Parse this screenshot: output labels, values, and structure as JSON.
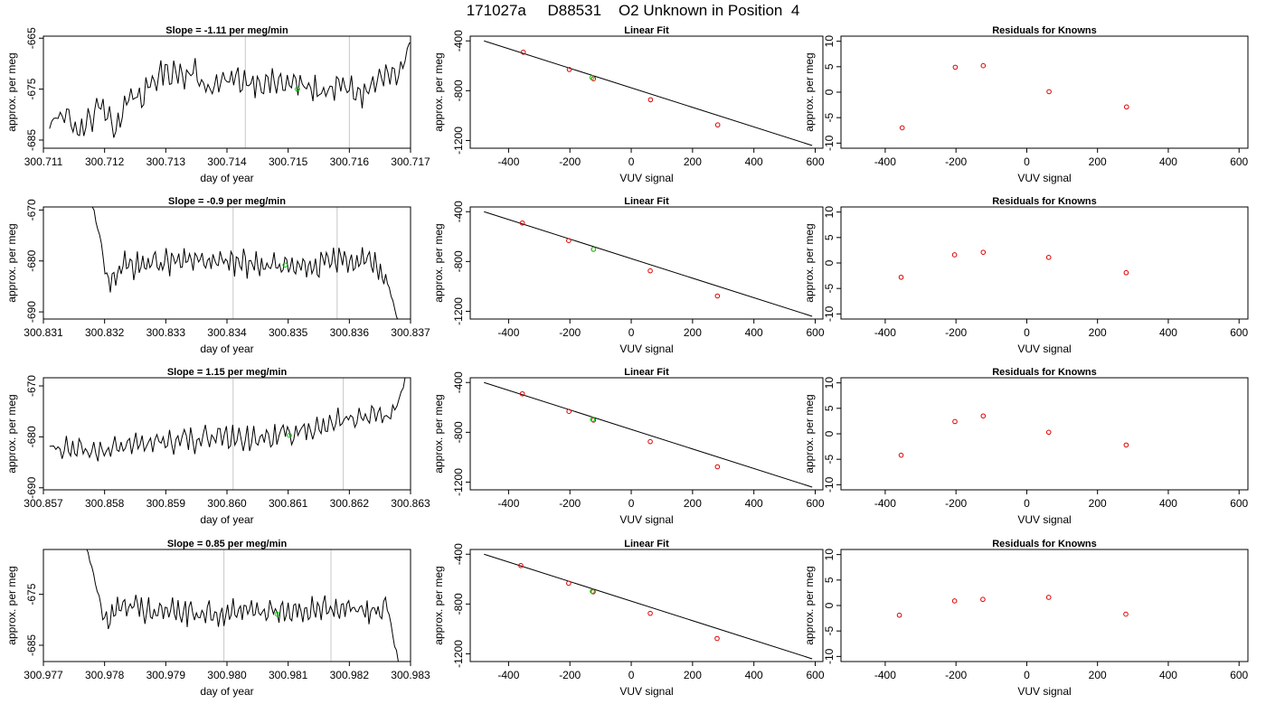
{
  "page_title": "171027a     D88531    O2 Unknown in Position  4",
  "colors": {
    "trace": "#000000",
    "known_point": "#dd0000",
    "unknown_point": "#00cc00",
    "marker_line": "#c8c8c8",
    "axis": "#000000"
  },
  "chart_data": [
    {
      "type": "line",
      "title": "Slope =  -1.11  per meg/min",
      "xlabel": "day of year",
      "ylabel": "approx. per meg",
      "xlim": [
        300.711,
        300.717
      ],
      "xticks": [
        "300.711",
        "300.712",
        "300.713",
        "300.714",
        "300.715",
        "300.716",
        "300.717"
      ],
      "ylim": [
        -686.6,
        -664.6
      ],
      "ylim_plot": [
        -664.6,
        -686.6
      ],
      "yticks": [
        -665,
        -675,
        -685
      ],
      "ytick_labels": [
        "-665",
        "-675",
        "-685"
      ],
      "vlines": [
        300.7143,
        300.716
      ],
      "trace_x_range": [
        300.7111,
        300.71705
      ],
      "trace_anchors": [
        [
          0,
          -682
        ],
        [
          0.04,
          -679
        ],
        [
          0.08,
          -684
        ],
        [
          0.14,
          -678
        ],
        [
          0.18,
          -683
        ],
        [
          0.22,
          -676
        ],
        [
          0.26,
          -676.5
        ],
        [
          0.3,
          -672
        ],
        [
          0.34,
          -671.5
        ],
        [
          0.4,
          -672
        ],
        [
          0.44,
          -675
        ],
        [
          0.5,
          -673
        ],
        [
          0.56,
          -673.5
        ],
        [
          0.62,
          -673.8
        ],
        [
          0.68,
          -674
        ],
        [
          0.74,
          -675.5
        ],
        [
          0.8,
          -674.5
        ],
        [
          0.86,
          -676
        ],
        [
          0.9,
          -673.5
        ],
        [
          0.935,
          -672
        ],
        [
          0.96,
          -673.5
        ],
        [
          0.975,
          -670
        ],
        [
          0.99,
          -666
        ],
        [
          1,
          -663
        ]
      ],
      "trace_noise": 2.0,
      "unknown_point": {
        "x": 300.71515,
        "y": -675
      }
    },
    {
      "type": "scatter",
      "title": "Linear Fit",
      "xlabel": "VUV signal",
      "ylabel": "approx. per meg",
      "xlim": [
        -525,
        625
      ],
      "xticks": [
        -400,
        -200,
        0,
        200,
        400,
        600
      ],
      "ylim": [
        -1262,
        -362
      ],
      "ylim_plot": [
        -362,
        -1262
      ],
      "yticks": [
        -400,
        -800,
        -1200
      ],
      "ytick_labels": [
        "-400",
        "-800",
        "-1200"
      ],
      "knowns": [
        {
          "x": -352,
          "y": -491
        },
        {
          "x": -202,
          "y": -630
        },
        {
          "x": -123,
          "y": -704
        },
        {
          "x": 63,
          "y": -873
        },
        {
          "x": 282,
          "y": -1075
        }
      ],
      "unknown_point": {
        "x": -128,
        "y": -695
      },
      "fit_line": [
        [
          -480,
          -400
        ],
        [
          590,
          -1240
        ]
      ]
    },
    {
      "type": "scatter",
      "title": "Residuals for Knowns",
      "xlabel": "VUV signal",
      "ylabel": "approx. per meg",
      "xlim": [
        -525,
        625
      ],
      "xticks": [
        -400,
        -200,
        0,
        200,
        400,
        600
      ],
      "ylim": [
        -11,
        11
      ],
      "ylim_plot": [
        11,
        -11
      ],
      "yticks": [
        10,
        5,
        0,
        -5,
        -10
      ],
      "ytick_labels": [
        "10",
        "5",
        "0",
        "-5",
        "-10"
      ],
      "points": [
        {
          "x": -352,
          "y": -7.0
        },
        {
          "x": -202,
          "y": 4.9
        },
        {
          "x": -123,
          "y": 5.2
        },
        {
          "x": 63,
          "y": 0.1
        },
        {
          "x": 282,
          "y": -2.9
        }
      ]
    },
    {
      "type": "line",
      "title": "Slope =  -0.9  per meg/min",
      "xlabel": "day of year",
      "ylabel": "approx. per meg",
      "xlim": [
        300.831,
        300.837
      ],
      "xticks": [
        "300.831",
        "300.832",
        "300.833",
        "300.834",
        "300.835",
        "300.836",
        "300.837"
      ],
      "ylim": [
        -691.4,
        -669.4
      ],
      "ylim_plot": [
        -669.4,
        -691.4
      ],
      "yticks": [
        -670,
        -680,
        -690
      ],
      "ytick_labels": [
        "-670",
        "-680",
        "-690"
      ],
      "vlines": [
        300.8341,
        300.8358
      ],
      "trace_x_range": [
        300.8318,
        300.8368
      ],
      "trace_anchors": [
        [
          0,
          -669
        ],
        [
          0.01,
          -672
        ],
        [
          0.02,
          -674
        ],
        [
          0.05,
          -684
        ],
        [
          0.1,
          -681
        ],
        [
          0.2,
          -680.5
        ],
        [
          0.3,
          -680
        ],
        [
          0.4,
          -680
        ],
        [
          0.5,
          -680.5
        ],
        [
          0.6,
          -681
        ],
        [
          0.7,
          -681.5
        ],
        [
          0.8,
          -680
        ],
        [
          0.88,
          -679.5
        ],
        [
          0.93,
          -681
        ],
        [
          0.97,
          -685
        ],
        [
          1,
          -692
        ]
      ],
      "trace_noise": 1.8,
      "unknown_point": {
        "x": 300.83495,
        "y": -680.8
      }
    },
    {
      "type": "scatter",
      "title": "Linear Fit",
      "xlabel": "VUV signal",
      "ylabel": "approx. per meg",
      "xlim": [
        -525,
        625
      ],
      "xticks": [
        -400,
        -200,
        0,
        200,
        400,
        600
      ],
      "ylim": [
        -1262,
        -362
      ],
      "ylim_plot": [
        -362,
        -1262
      ],
      "yticks": [
        -400,
        -800,
        -1200
      ],
      "ytick_labels": [
        "-400",
        "-800",
        "-1200"
      ],
      "knowns": [
        {
          "x": -355,
          "y": -491
        },
        {
          "x": -204,
          "y": -632
        },
        {
          "x": -123,
          "y": -702
        },
        {
          "x": 62,
          "y": -875
        },
        {
          "x": 281,
          "y": -1077
        }
      ],
      "unknown_point": {
        "x": -123,
        "y": -702
      },
      "fit_line": [
        [
          -480,
          -400
        ],
        [
          590,
          -1240
        ]
      ]
    },
    {
      "type": "scatter",
      "title": "Residuals for Knowns",
      "xlabel": "VUV signal",
      "ylabel": "approx. per meg",
      "xlim": [
        -525,
        625
      ],
      "xticks": [
        -400,
        -200,
        0,
        200,
        400,
        600
      ],
      "ylim": [
        -11,
        11
      ],
      "ylim_plot": [
        11,
        -11
      ],
      "yticks": [
        10,
        5,
        0,
        -5,
        -10
      ],
      "ytick_labels": [
        "10",
        "5",
        "0",
        "-5",
        "-10"
      ],
      "points": [
        {
          "x": -355,
          "y": -2.8
        },
        {
          "x": -204,
          "y": 1.6
        },
        {
          "x": -123,
          "y": 2.1
        },
        {
          "x": 62,
          "y": 1.1
        },
        {
          "x": 281,
          "y": -1.9
        }
      ]
    },
    {
      "type": "line",
      "title": "Slope =  1.15  per meg/min",
      "xlabel": "day of year",
      "ylabel": "approx. per meg",
      "xlim": [
        300.857,
        300.863
      ],
      "xticks": [
        "300.857",
        "300.858",
        "300.859",
        "300.860",
        "300.861",
        "300.862",
        "300.863"
      ],
      "ylim": [
        -690.4,
        -668.4
      ],
      "ylim_plot": [
        -668.4,
        -690.4
      ],
      "yticks": [
        -670,
        -680,
        -690
      ],
      "ytick_labels": [
        "-670",
        "-680",
        "-690"
      ],
      "vlines": [
        300.8601,
        300.8619
      ],
      "trace_x_range": [
        300.8571,
        300.86295
      ],
      "trace_anchors": [
        [
          0,
          -682
        ],
        [
          0.1,
          -683
        ],
        [
          0.2,
          -682
        ],
        [
          0.3,
          -681
        ],
        [
          0.4,
          -680.5
        ],
        [
          0.5,
          -680.5
        ],
        [
          0.6,
          -680
        ],
        [
          0.7,
          -679
        ],
        [
          0.8,
          -677
        ],
        [
          0.9,
          -676
        ],
        [
          0.94,
          -677
        ],
        [
          0.97,
          -674
        ],
        [
          1,
          -667
        ]
      ],
      "trace_noise": 1.8,
      "unknown_point": {
        "x": 300.86102,
        "y": -679.7
      }
    },
    {
      "type": "scatter",
      "title": "Linear Fit",
      "xlabel": "VUV signal",
      "ylabel": "approx. per meg",
      "xlim": [
        -525,
        625
      ],
      "xticks": [
        -400,
        -200,
        0,
        200,
        400,
        600
      ],
      "ylim": [
        -1262,
        -362
      ],
      "ylim_plot": [
        -362,
        -1262
      ],
      "yticks": [
        -400,
        -800,
        -1200
      ],
      "ytick_labels": [
        "-400",
        "-800",
        "-1200"
      ],
      "knowns": [
        {
          "x": -355,
          "y": -491
        },
        {
          "x": -203,
          "y": -632
        },
        {
          "x": -123,
          "y": -702
        },
        {
          "x": 62,
          "y": -875
        },
        {
          "x": 281,
          "y": -1077
        }
      ],
      "unknown_point": {
        "x": -126,
        "y": -696
      },
      "fit_line": [
        [
          -480,
          -400
        ],
        [
          590,
          -1240
        ]
      ]
    },
    {
      "type": "scatter",
      "title": "Residuals for Knowns",
      "xlabel": "VUV signal",
      "ylabel": "approx. per meg",
      "xlim": [
        -525,
        625
      ],
      "xticks": [
        -400,
        -200,
        0,
        200,
        400,
        600
      ],
      "ylim": [
        -11,
        11
      ],
      "ylim_plot": [
        11,
        -11
      ],
      "yticks": [
        10,
        5,
        0,
        -5,
        -10
      ],
      "ytick_labels": [
        "10",
        "5",
        "0",
        "-5",
        "-10"
      ],
      "points": [
        {
          "x": -355,
          "y": -4.2
        },
        {
          "x": -203,
          "y": 2.4
        },
        {
          "x": -123,
          "y": 3.5
        },
        {
          "x": 62,
          "y": 0.3
        },
        {
          "x": 281,
          "y": -2.2
        }
      ]
    },
    {
      "type": "line",
      "title": "Slope =  0.85  per meg/min",
      "xlabel": "day of year",
      "ylabel": "approx. per meg",
      "xlim": [
        300.977,
        300.983
      ],
      "xticks": [
        "300.977",
        "300.978",
        "300.979",
        "300.980",
        "300.981",
        "300.982",
        "300.983"
      ],
      "ylim": [
        -688.2,
        -666.2
      ],
      "ylim_plot": [
        -666.2,
        -688.2
      ],
      "yticks": [
        -675,
        -685
      ],
      "ytick_labels": [
        "-675",
        "-685"
      ],
      "vlines": [
        300.97995,
        300.9817
      ],
      "trace_x_range": [
        300.9777,
        300.9828
      ],
      "trace_anchors": [
        [
          0,
          -666
        ],
        [
          0.02,
          -670
        ],
        [
          0.04,
          -676
        ],
        [
          0.06,
          -681
        ],
        [
          0.1,
          -677
        ],
        [
          0.2,
          -678
        ],
        [
          0.3,
          -678.5
        ],
        [
          0.4,
          -679
        ],
        [
          0.5,
          -678.5
        ],
        [
          0.6,
          -678
        ],
        [
          0.7,
          -678
        ],
        [
          0.8,
          -677.5
        ],
        [
          0.85,
          -677.5
        ],
        [
          0.9,
          -678.5
        ],
        [
          0.94,
          -679
        ],
        [
          0.96,
          -676
        ],
        [
          0.98,
          -682
        ],
        [
          1,
          -688
        ]
      ],
      "trace_noise": 1.8,
      "unknown_point": {
        "x": 300.98082,
        "y": -678.9
      }
    },
    {
      "type": "scatter",
      "title": "Linear Fit",
      "xlabel": "VUV signal",
      "ylabel": "approx. per meg",
      "xlim": [
        -525,
        625
      ],
      "xticks": [
        -400,
        -200,
        0,
        200,
        400,
        600
      ],
      "ylim": [
        -1262,
        -362
      ],
      "ylim_plot": [
        -362,
        -1262
      ],
      "yticks": [
        -400,
        -800,
        -1200
      ],
      "ytick_labels": [
        "-400",
        "-800",
        "-1200"
      ],
      "knowns": [
        {
          "x": -360,
          "y": -491
        },
        {
          "x": -204,
          "y": -633
        },
        {
          "x": -124,
          "y": -702
        },
        {
          "x": 62,
          "y": -875
        },
        {
          "x": 280,
          "y": -1077
        }
      ],
      "unknown_point": {
        "x": -127,
        "y": -698
      },
      "fit_line": [
        [
          -480,
          -400
        ],
        [
          590,
          -1240
        ]
      ]
    },
    {
      "type": "scatter",
      "title": "Residuals for Knowns",
      "xlabel": "VUV signal",
      "ylabel": "approx. per meg",
      "xlim": [
        -525,
        625
      ],
      "xticks": [
        -400,
        -200,
        0,
        200,
        400,
        600
      ],
      "ylim": [
        -11,
        11
      ],
      "ylim_plot": [
        11,
        -11
      ],
      "yticks": [
        10,
        5,
        0,
        -5,
        -10
      ],
      "ytick_labels": [
        "10",
        "5",
        "0",
        "-5",
        "-10"
      ],
      "points": [
        {
          "x": -360,
          "y": -1.9
        },
        {
          "x": -204,
          "y": 0.9
        },
        {
          "x": -124,
          "y": 1.2
        },
        {
          "x": 62,
          "y": 1.6
        },
        {
          "x": 280,
          "y": -1.7
        }
      ]
    }
  ]
}
